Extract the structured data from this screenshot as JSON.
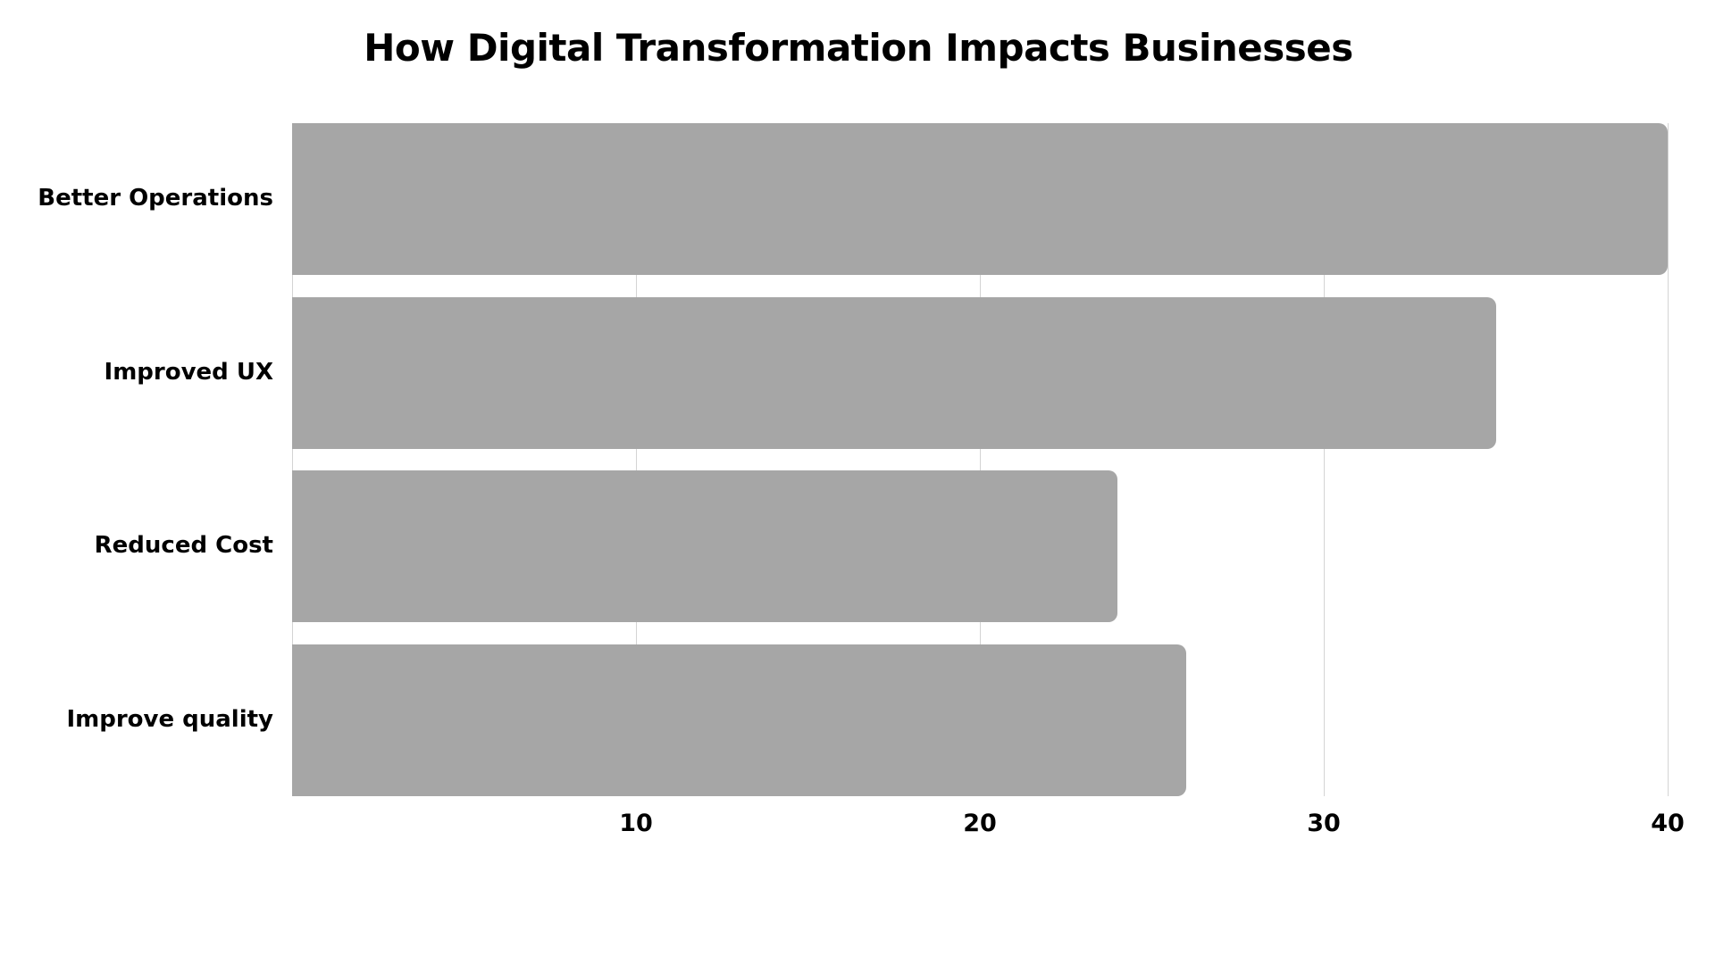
{
  "chart_data": {
    "type": "bar",
    "orientation": "horizontal",
    "title": "How Digital Transformation Impacts Businesses",
    "categories": [
      "Better Operations",
      "Improved UX",
      "Reduced Cost",
      "Improve quality"
    ],
    "values": [
      40,
      35,
      24,
      26
    ],
    "xlabel": "",
    "ylabel": "",
    "xlim": [
      0,
      40
    ],
    "x_ticks": [
      10,
      20,
      30,
      40
    ],
    "grid": true,
    "legend": null,
    "bar_color": "#a6a6a6"
  },
  "title": "How Digital Transformation Impacts Businesses",
  "colors": {
    "bar": "#a6a6a6",
    "grid": "#d4d4d4",
    "text": "#000000",
    "background": "#ffffff"
  }
}
